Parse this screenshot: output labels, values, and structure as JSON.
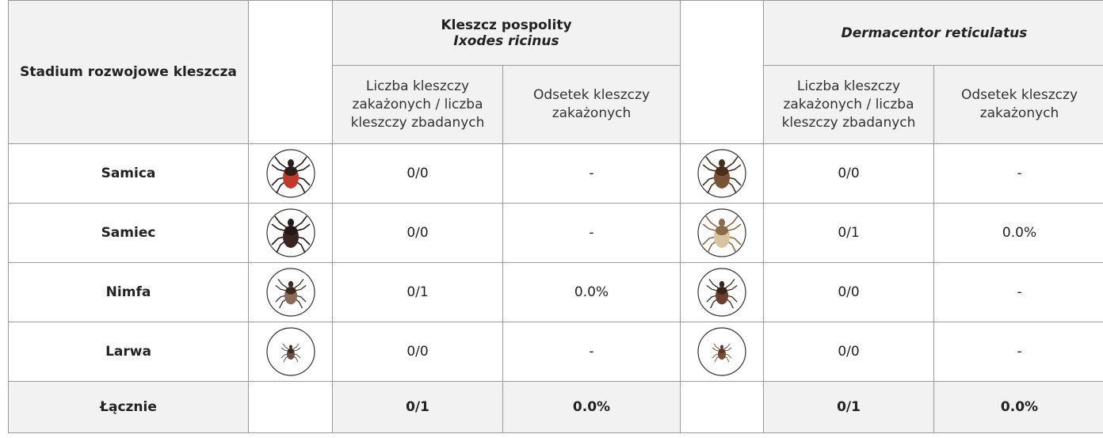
{
  "table": {
    "header": {
      "stage": "Stadium rozwojowe kleszcza",
      "species": [
        {
          "name": "Kleszcz pospolity",
          "latin": "Ixodes ricinus",
          "columns": [
            "Liczba kleszczy zakażonych / liczba kleszczy zbadanych",
            "Odsetek kleszczy zakażonych"
          ]
        },
        {
          "latin": "Dermacentor reticulatus",
          "columns": [
            "Liczba kleszczy zakażonych / liczba kleszczy zbadanych",
            "Odsetek kleszczy zakażonych"
          ]
        }
      ]
    },
    "rows": [
      {
        "stage": "Samica",
        "cells": [
          "0/0",
          "-",
          "0/0",
          "-"
        ]
      },
      {
        "stage": "Samiec",
        "cells": [
          "0/0",
          "-",
          "0/1",
          "0.0%"
        ]
      },
      {
        "stage": "Nimfa",
        "cells": [
          "0/1",
          "0.0%",
          "0/0",
          "-"
        ]
      },
      {
        "stage": "Larwa",
        "cells": [
          "0/0",
          "-",
          "0/0",
          "-"
        ]
      },
      {
        "stage": "Łącznie",
        "cells": [
          "0/1",
          "0.0%",
          "0/1",
          "0.0%"
        ]
      }
    ]
  }
}
